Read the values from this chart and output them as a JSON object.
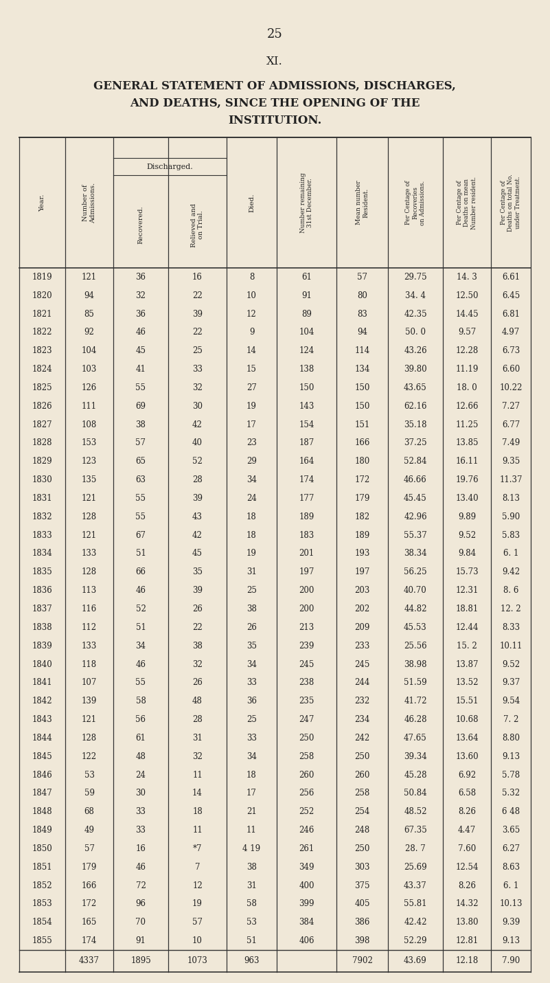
{
  "page_number": "25",
  "section": "XI.",
  "title_line1": "GENERAL STATEMENT OF ADMISSIONS, DISCHARGES,",
  "title_line2": "AND DEATHS, SINCE THE OPENING OF THE",
  "title_line3": "INSTITUTION.",
  "bg_color": "#f0e8d8",
  "col_headers": [
    "Year.",
    "Number of\nAdmissions.",
    "Recovered.",
    "Relieved and\non Trial.",
    "Died.",
    "Number remaining\n31st December.",
    "Mean number\nResident.",
    "Per Centage of\nRecoveries\non Admissions.",
    "Per Centage of\nDeaths on mean\nNumber resident.",
    "Per Centage of\nDeaths on total No.\nunder Treatment."
  ],
  "discharged_label": "Discharged.",
  "rows": [
    [
      "1819",
      "121",
      "36",
      "16",
      "8",
      "61",
      "57",
      "29.75",
      "14. 3",
      "6.61"
    ],
    [
      "1820",
      "94",
      "32",
      "22",
      "10",
      "91",
      "80",
      "34. 4",
      "12.50",
      "6.45"
    ],
    [
      "1821",
      "85",
      "36",
      "39",
      "12",
      "89",
      "83",
      "42.35",
      "14.45",
      "6.81"
    ],
    [
      "1822",
      "92",
      "46",
      "22",
      "9",
      "104",
      "94",
      "50. 0",
      "9.57",
      "4.97"
    ],
    [
      "1823",
      "104",
      "45",
      "25",
      "14",
      "124",
      "114",
      "43.26",
      "12.28",
      "6.73"
    ],
    [
      "1824",
      "103",
      "41",
      "33",
      "15",
      "138",
      "134",
      "39.80",
      "11.19",
      "6.60"
    ],
    [
      "1825",
      "126",
      "55",
      "32",
      "27",
      "150",
      "150",
      "43.65",
      "18. 0",
      "10.22"
    ],
    [
      "1826",
      "111",
      "69",
      "30",
      "19",
      "143",
      "150",
      "62.16",
      "12.66",
      "7.27"
    ],
    [
      "1827",
      "108",
      "38",
      "42",
      "17",
      "154",
      "151",
      "35.18",
      "11.25",
      "6.77"
    ],
    [
      "1828",
      "153",
      "57",
      "40",
      "23",
      "187",
      "166",
      "37.25",
      "13.85",
      "7.49"
    ],
    [
      "1829",
      "123",
      "65",
      "52",
      "29",
      "164",
      "180",
      "52.84",
      "16.11",
      "9.35"
    ],
    [
      "1830",
      "135",
      "63",
      "28",
      "34",
      "174",
      "172",
      "46.66",
      "19.76",
      "11.37"
    ],
    [
      "1831",
      "121",
      "55",
      "39",
      "24",
      "177",
      "179",
      "45.45",
      "13.40",
      "8.13"
    ],
    [
      "1832",
      "128",
      "55",
      "43",
      "18",
      "189",
      "182",
      "42.96",
      "9.89",
      "5.90"
    ],
    [
      "1833",
      "121",
      "67",
      "42",
      "18",
      "183",
      "189",
      "55.37",
      "9.52",
      "5.83"
    ],
    [
      "1834",
      "133",
      "51",
      "45",
      "19",
      "201",
      "193",
      "38.34",
      "9.84",
      "6. 1"
    ],
    [
      "1835",
      "128",
      "66",
      "35",
      "31",
      "197",
      "197",
      "56.25",
      "15.73",
      "9.42"
    ],
    [
      "1836",
      "113",
      "46",
      "39",
      "25",
      "200",
      "203",
      "40.70",
      "12.31",
      "8. 6"
    ],
    [
      "1837",
      "116",
      "52",
      "26",
      "38",
      "200",
      "202",
      "44.82",
      "18.81",
      "12. 2"
    ],
    [
      "1838",
      "112",
      "51",
      "22",
      "26",
      "213",
      "209",
      "45.53",
      "12.44",
      "8.33"
    ],
    [
      "1839",
      "133",
      "34",
      "38",
      "35",
      "239",
      "233",
      "25.56",
      "15. 2",
      "10.11"
    ],
    [
      "1840",
      "118",
      "46",
      "32",
      "34",
      "245",
      "245",
      "38.98",
      "13.87",
      "9.52"
    ],
    [
      "1841",
      "107",
      "55",
      "26",
      "33",
      "238",
      "244",
      "51.59",
      "13.52",
      "9.37"
    ],
    [
      "1842",
      "139",
      "58",
      "48",
      "36",
      "235",
      "232",
      "41.72",
      "15.51",
      "9.54"
    ],
    [
      "1843",
      "121",
      "56",
      "28",
      "25",
      "247",
      "234",
      "46.28",
      "10.68",
      "7. 2"
    ],
    [
      "1844",
      "128",
      "61",
      "31",
      "33",
      "250",
      "242",
      "47.65",
      "13.64",
      "8.80"
    ],
    [
      "1845",
      "122",
      "48",
      "32",
      "34",
      "258",
      "250",
      "39.34",
      "13.60",
      "9.13"
    ],
    [
      "1846",
      "53",
      "24",
      "11",
      "18",
      "260",
      "260",
      "45.28",
      "6.92",
      "5.78"
    ],
    [
      "1847",
      "59",
      "30",
      "14",
      "17",
      "256",
      "258",
      "50.84",
      "6.58",
      "5.32"
    ],
    [
      "1848",
      "68",
      "33",
      "18",
      "21",
      "252",
      "254",
      "48.52",
      "8.26",
      "6 48"
    ],
    [
      "1849",
      "49",
      "33",
      "11",
      "11",
      "246",
      "248",
      "67.35",
      "4.47",
      "3.65"
    ],
    [
      "1850",
      "57",
      "16",
      "*7",
      "4 19",
      "261",
      "250",
      "28. 7",
      "7.60",
      "6.27"
    ],
    [
      "1851",
      "179",
      "46",
      "7",
      "38",
      "349",
      "303",
      "25.69",
      "12.54",
      "8.63"
    ],
    [
      "1852",
      "166",
      "72",
      "12",
      "31",
      "400",
      "375",
      "43.37",
      "8.26",
      "6. 1"
    ],
    [
      "1853",
      "172",
      "96",
      "19",
      "58",
      "399",
      "405",
      "55.81",
      "14.32",
      "10.13"
    ],
    [
      "1854",
      "165",
      "70",
      "57",
      "53",
      "384",
      "386",
      "42.42",
      "13.80",
      "9.39"
    ],
    [
      "1855",
      "174",
      "91",
      "10",
      "51",
      "406",
      "398",
      "52.29",
      "12.81",
      "9.13"
    ]
  ],
  "totals": [
    "",
    "4337",
    "1895",
    "1073",
    "963",
    "",
    "7902",
    "43.69",
    "12.18",
    "7.90"
  ]
}
